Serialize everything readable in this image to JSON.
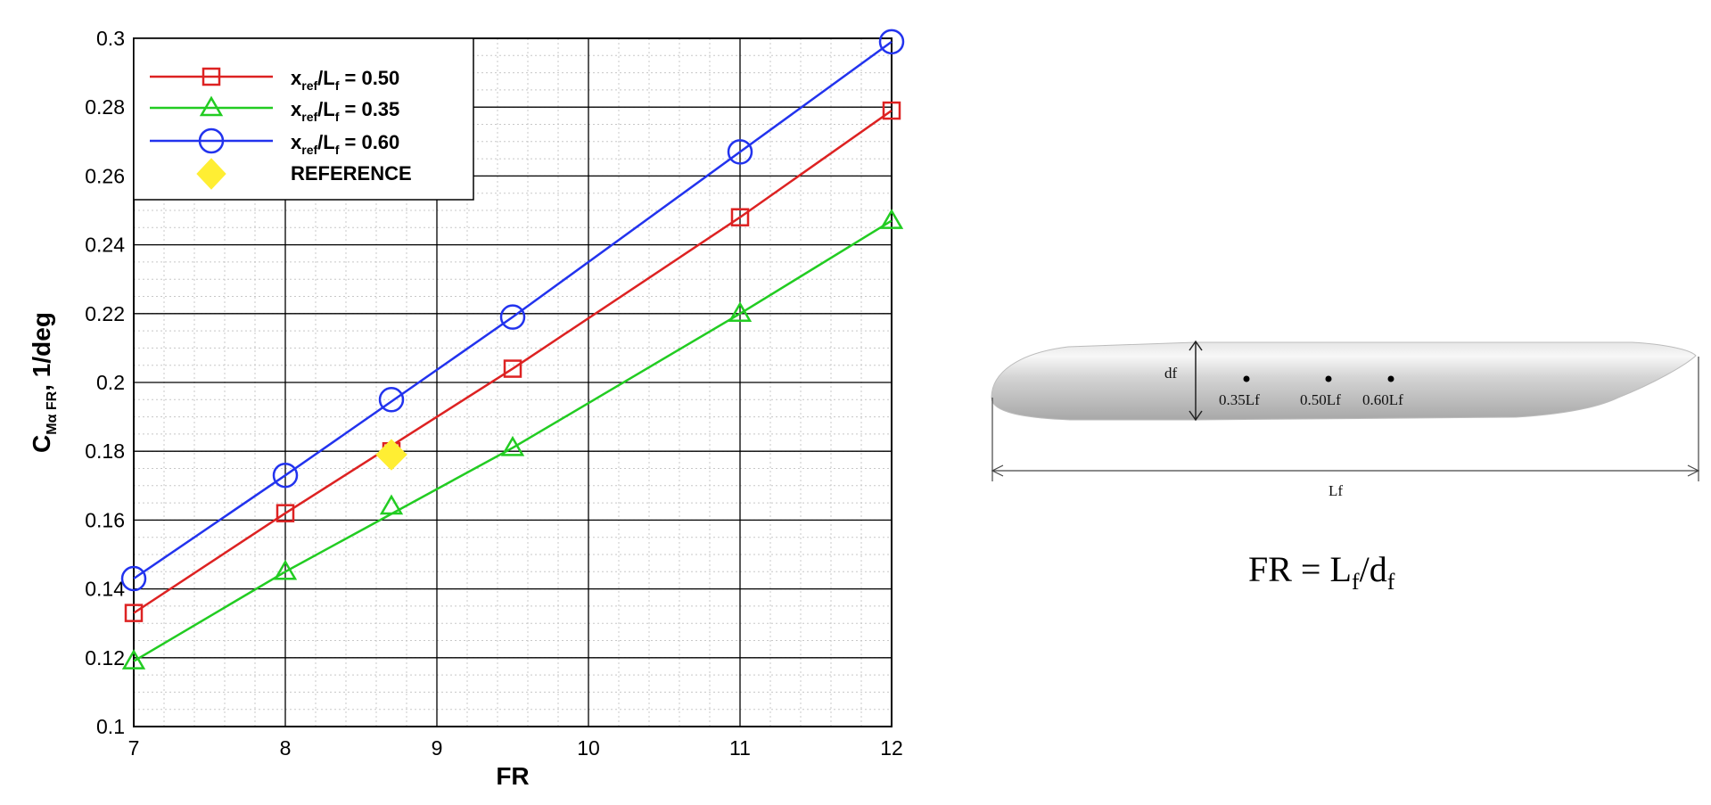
{
  "chart_data": {
    "type": "line",
    "xlabel": "FR",
    "ylabel_main": "C",
    "ylabel_sub": "Mα FR",
    "ylabel_unit": ", 1/deg",
    "xlim": [
      7,
      12
    ],
    "ylim": [
      0.1,
      0.3
    ],
    "x_ticks": [
      "7",
      "8",
      "9",
      "10",
      "11",
      "12"
    ],
    "y_ticks": [
      "0.1",
      "0.12",
      "0.14",
      "0.16",
      "0.18",
      "0.2",
      "0.22",
      "0.24",
      "0.26",
      "0.28",
      "0.3"
    ],
    "grid": true,
    "legend_position": "top-left",
    "x": [
      7,
      8,
      9.5,
      11,
      12
    ],
    "series": [
      {
        "name_main": "x",
        "name_sub": "ref",
        "name_mid": "/L",
        "name_sub2": "f",
        "name_val": " = 0.50",
        "color": "#dd2222",
        "marker": "square",
        "values": [
          0.133,
          0.162,
          0.204,
          0.248,
          0.279
        ]
      },
      {
        "name_main": "x",
        "name_sub": "ref",
        "name_mid": "/L",
        "name_sub2": "f",
        "name_val": " = 0.35",
        "color": "#22cc22",
        "marker": "triangle",
        "values": [
          0.119,
          0.145,
          0.181,
          0.22,
          0.247
        ]
      },
      {
        "name_main": "x",
        "name_sub": "ref",
        "name_mid": "/L",
        "name_sub2": "f",
        "name_val": " = 0.60",
        "color": "#2233ee",
        "marker": "circle",
        "values": [
          0.143,
          0.173,
          0.219,
          0.267,
          0.299
        ]
      }
    ],
    "reference": {
      "name": "REFERENCE",
      "x": 8.7,
      "y": 0.179,
      "color": "#ffee33"
    },
    "extra_points": [
      {
        "series": 0,
        "x": 8.7,
        "y": 0.18
      },
      {
        "series": 1,
        "x": 8.7,
        "y": 0.164
      },
      {
        "series": 2,
        "x": 8.7,
        "y": 0.195
      }
    ]
  },
  "diagram": {
    "df_label": "df",
    "lf_label": "Lf",
    "point_labels": [
      "0.35Lf",
      "0.50Lf",
      "0.60Lf"
    ],
    "formula_main": "FR = L",
    "formula_sub1": "f",
    "formula_mid": "/d",
    "formula_sub2": "f"
  }
}
